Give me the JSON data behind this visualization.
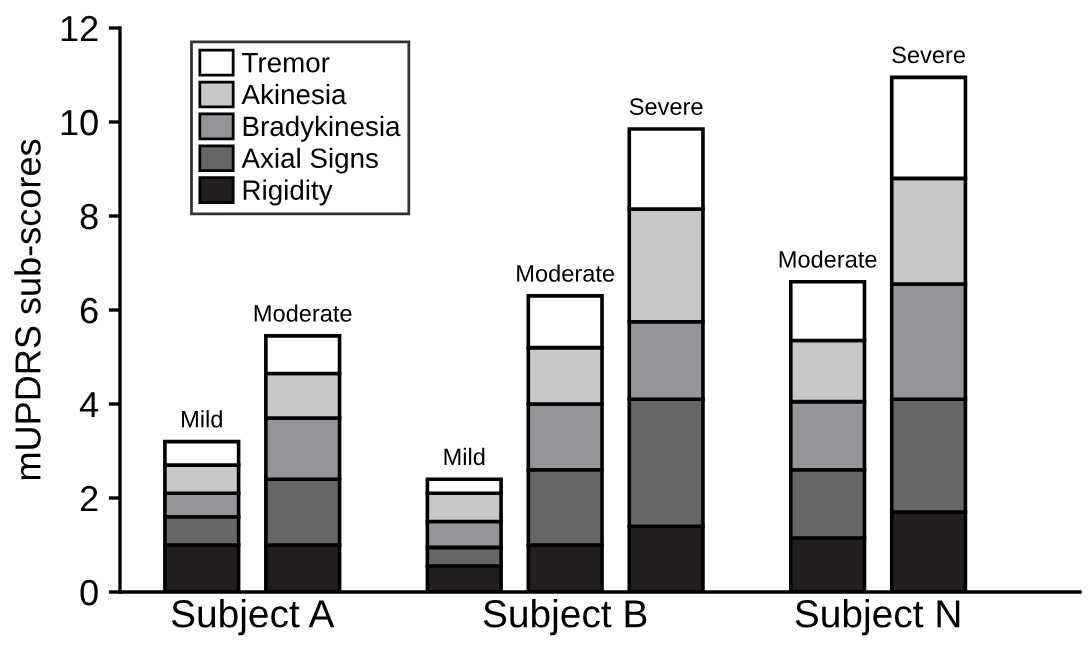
{
  "chart_data": {
    "type": "bar",
    "stacked": true,
    "ylabel": "mUPDRS sub-scores",
    "categories": [
      "Mild",
      "Moderate",
      "Mild",
      "Moderate",
      "Severe",
      "Moderate",
      "Severe"
    ],
    "annotations": [
      "Subject A",
      "Subject B",
      "Subject N"
    ],
    "series": [
      {
        "name": "Rigidity",
        "color": "#231f20",
        "values": [
          1.0,
          1.0,
          0.55,
          1.0,
          1.4,
          1.15,
          1.7
        ]
      },
      {
        "name": "Axial Signs",
        "color": "#666666",
        "values": [
          0.6,
          1.4,
          0.4,
          1.6,
          2.7,
          1.45,
          2.4
        ]
      },
      {
        "name": "Bradykinesia",
        "color": "#939598",
        "values": [
          0.5,
          1.3,
          0.55,
          1.4,
          1.65,
          1.45,
          2.45
        ]
      },
      {
        "name": "Akinesia",
        "color": "#c8c8c8",
        "values": [
          0.6,
          0.95,
          0.6,
          1.2,
          2.4,
          1.3,
          2.25
        ]
      },
      {
        "name": "Tremor",
        "color": "#ffffff",
        "values": [
          0.5,
          0.8,
          0.3,
          1.1,
          1.7,
          1.25,
          2.15
        ]
      }
    ],
    "ylim": [
      0,
      12
    ],
    "yticks": [
      0,
      2,
      4,
      6,
      8,
      10,
      12
    ],
    "legend": "top left",
    "grid": false
  }
}
